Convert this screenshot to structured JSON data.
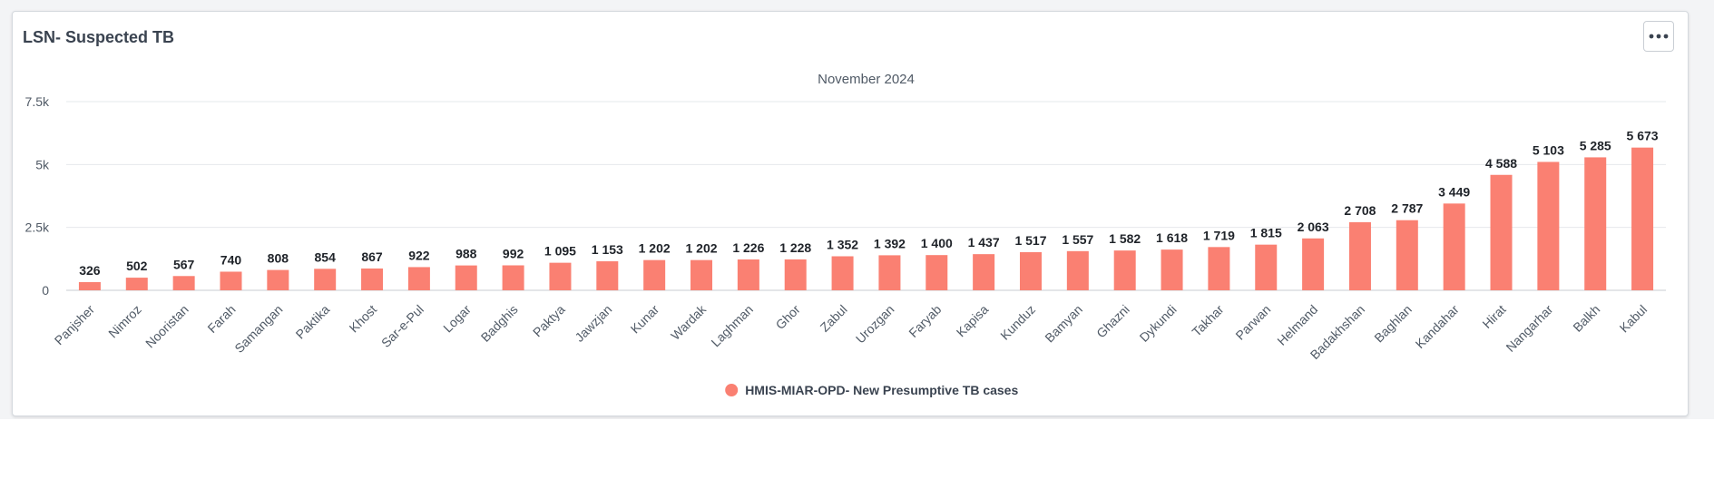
{
  "card": {
    "title": "LSN- Suspected TB",
    "menu_icon": "more-horizontal-icon"
  },
  "colors": {
    "bar": "#fa8072",
    "grid": "#e6e8eb",
    "axis_text": "#505a66",
    "label_text": "#1f2329"
  },
  "chart_data": {
    "type": "bar",
    "subtitle": "November 2024",
    "categories": [
      "Panjsher",
      "Nimroz",
      "Nooristan",
      "Farah",
      "Samangan",
      "Paktika",
      "Khost",
      "Sar-e-Pul",
      "Logar",
      "Badghis",
      "Paktya",
      "Jawzjan",
      "Kunar",
      "Wardak",
      "Laghman",
      "Ghor",
      "Zabul",
      "Urozgan",
      "Faryab",
      "Kapisa",
      "Kunduz",
      "Bamyan",
      "Ghazni",
      "Dykundi",
      "Takhar",
      "Parwan",
      "Helmand",
      "Badakhshan",
      "Baghlan",
      "Kandahar",
      "Hirat",
      "Nangarhar",
      "Balkh",
      "Kabul"
    ],
    "series": [
      {
        "name": "HMIS-MIAR-OPD- New Presumptive TB cases",
        "values": [
          326,
          502,
          567,
          740,
          808,
          854,
          867,
          922,
          988,
          992,
          1095,
          1153,
          1202,
          1202,
          1226,
          1228,
          1352,
          1392,
          1400,
          1437,
          1517,
          1557,
          1582,
          1618,
          1719,
          1815,
          2063,
          2708,
          2787,
          3449,
          4588,
          5103,
          5285,
          5673
        ],
        "data_labels": [
          "326",
          "502",
          "567",
          "740",
          "808",
          "854",
          "867",
          "922",
          "988",
          "992",
          "1 095",
          "1 153",
          "1 202",
          "1 202",
          "1 226",
          "1 228",
          "1 352",
          "1 392",
          "1 400",
          "1 437",
          "1 517",
          "1 557",
          "1 582",
          "1 618",
          "1 719",
          "1 815",
          "2 063",
          "2 708",
          "2 787",
          "3 449",
          "4 588",
          "5 103",
          "5 285",
          "5 673"
        ]
      }
    ],
    "ylim": [
      0,
      7500
    ],
    "yticks": [
      0,
      2500,
      5000,
      7500
    ],
    "ytick_labels": [
      "0",
      "2.5k",
      "5k",
      "7.5k"
    ],
    "grid": true,
    "legend_position": "bottom-center"
  }
}
